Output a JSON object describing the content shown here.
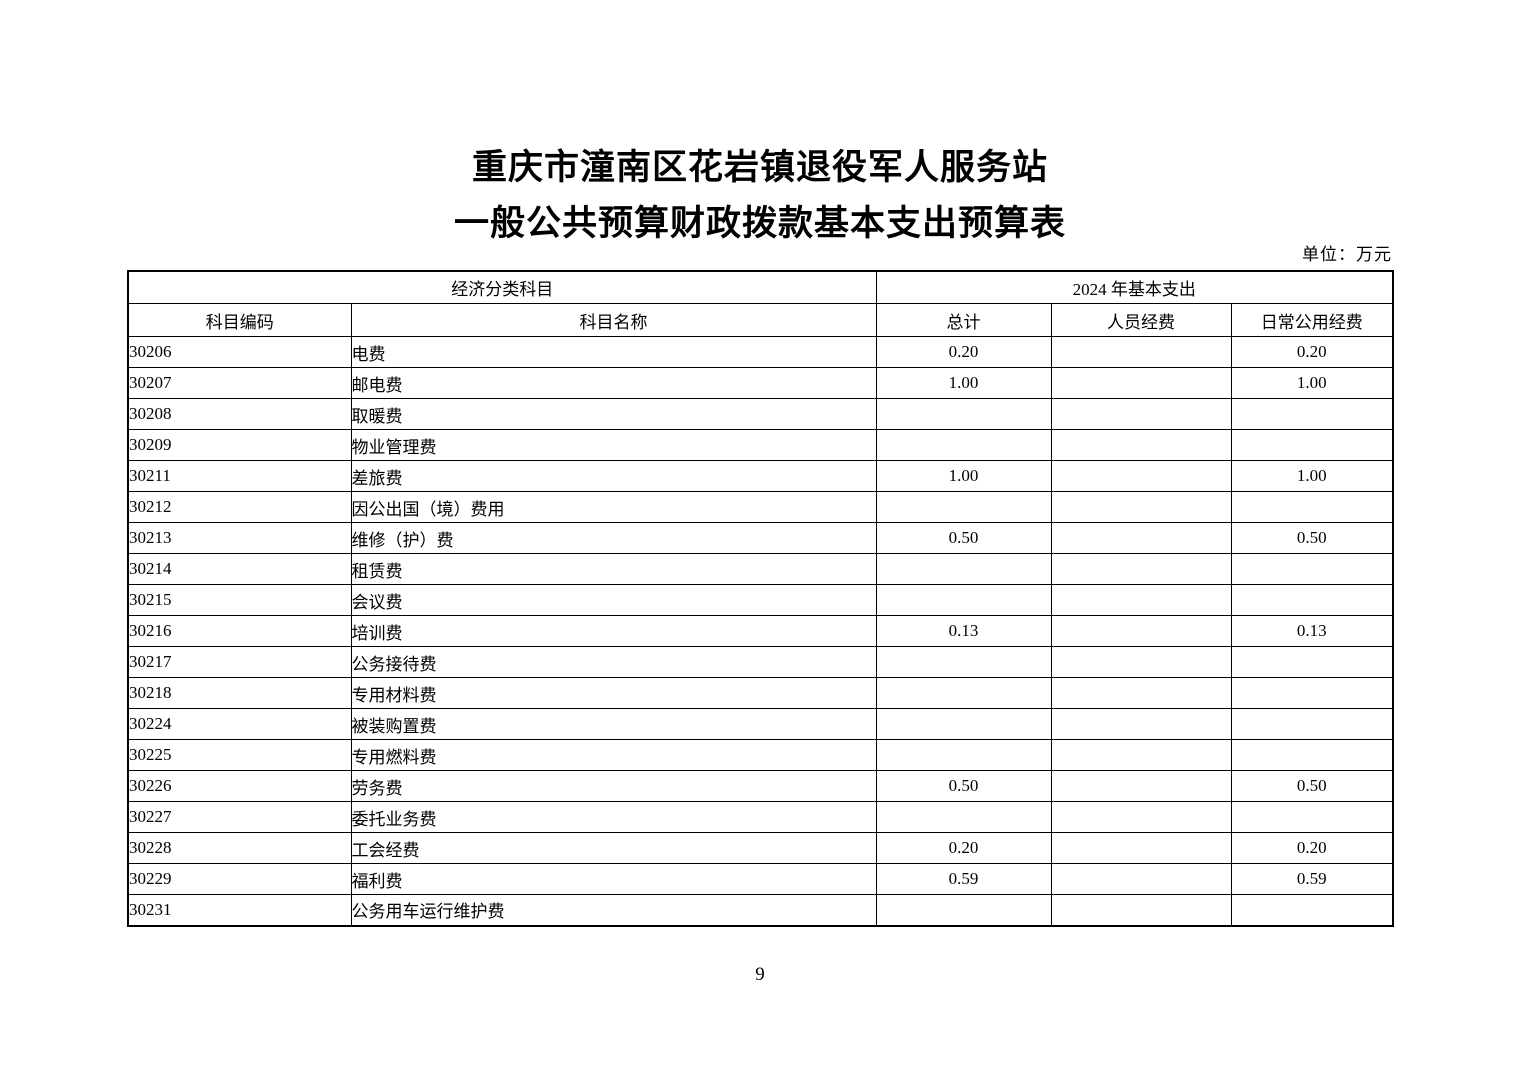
{
  "page": {
    "title_line1": "重庆市潼南区花岩镇退役军人服务站",
    "title_line2": "一般公共预算财政拨款基本支出预算表",
    "unit_label": "单位：万元",
    "page_number": "9"
  },
  "table": {
    "header": {
      "group_economic": "经济分类科目",
      "group_year": "2024 年基本支出",
      "col_code": "科目编码",
      "col_name": "科目名称",
      "col_total": "总计",
      "col_personnel": "人员经费",
      "col_daily": "日常公用经费"
    },
    "rows": [
      {
        "code": "30206",
        "name": "电费",
        "total": "0.20",
        "personnel": "",
        "daily": "0.20"
      },
      {
        "code": "30207",
        "name": "邮电费",
        "total": "1.00",
        "personnel": "",
        "daily": "1.00"
      },
      {
        "code": "30208",
        "name": "取暖费",
        "total": "",
        "personnel": "",
        "daily": ""
      },
      {
        "code": "30209",
        "name": "物业管理费",
        "total": "",
        "personnel": "",
        "daily": ""
      },
      {
        "code": "30211",
        "name": "差旅费",
        "total": "1.00",
        "personnel": "",
        "daily": "1.00"
      },
      {
        "code": "30212",
        "name": "因公出国（境）费用",
        "total": "",
        "personnel": "",
        "daily": ""
      },
      {
        "code": "30213",
        "name": "维修（护）费",
        "total": "0.50",
        "personnel": "",
        "daily": "0.50"
      },
      {
        "code": "30214",
        "name": "租赁费",
        "total": "",
        "personnel": "",
        "daily": ""
      },
      {
        "code": "30215",
        "name": "会议费",
        "total": "",
        "personnel": "",
        "daily": ""
      },
      {
        "code": "30216",
        "name": "培训费",
        "total": "0.13",
        "personnel": "",
        "daily": "0.13"
      },
      {
        "code": "30217",
        "name": "公务接待费",
        "total": "",
        "personnel": "",
        "daily": ""
      },
      {
        "code": "30218",
        "name": "专用材料费",
        "total": "",
        "personnel": "",
        "daily": ""
      },
      {
        "code": "30224",
        "name": "被装购置费",
        "total": "",
        "personnel": "",
        "daily": ""
      },
      {
        "code": "30225",
        "name": "专用燃料费",
        "total": "",
        "personnel": "",
        "daily": ""
      },
      {
        "code": "30226",
        "name": "劳务费",
        "total": "0.50",
        "personnel": "",
        "daily": "0.50"
      },
      {
        "code": "30227",
        "name": "委托业务费",
        "total": "",
        "personnel": "",
        "daily": ""
      },
      {
        "code": "30228",
        "name": "工会经费",
        "total": "0.20",
        "personnel": "",
        "daily": "0.20"
      },
      {
        "code": "30229",
        "name": "福利费",
        "total": "0.59",
        "personnel": "",
        "daily": "0.59"
      },
      {
        "code": "30231",
        "name": "公务用车运行维护费",
        "total": "",
        "personnel": "",
        "daily": ""
      }
    ]
  }
}
